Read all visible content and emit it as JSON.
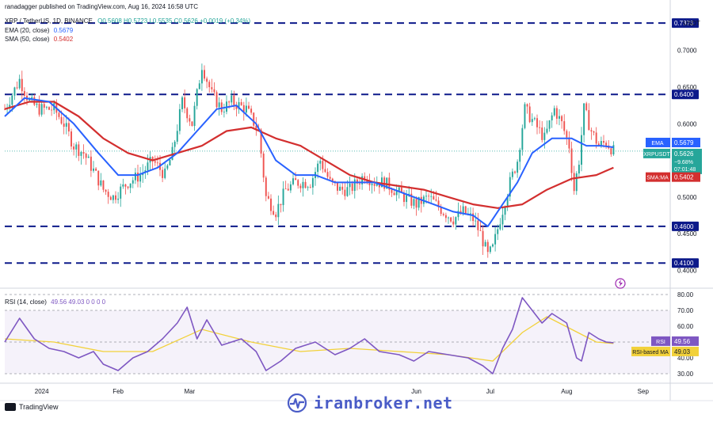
{
  "header": {
    "published": "ranadagger published on TradingView.com, Aug 16, 2024 16:58 UTC",
    "symbol_line": "XRP / TetherUS, 1D, BINANCE",
    "ohlc": "O0.5608 H0.5723 L0.5535 C0.5626 +0.0019 (+0.34%)",
    "ema_label": "EMA (20, close)",
    "ema_value": "0.5679",
    "sma_label": "SMA (50, close)",
    "sma_value": "0.5402",
    "rsi_label": "RSI (14, close)",
    "rsi_values": "49.56 49.03 0 0 0 0"
  },
  "price_axis": {
    "currency": "USDT",
    "ticks": [
      "0.7000",
      "0.6500",
      "0.6000",
      "0.5500",
      "0.5000",
      "0.4500",
      "0.4000"
    ]
  },
  "levels": [
    {
      "label": "0.7373",
      "value": 0.7373
    },
    {
      "label": "0.6400",
      "value": 0.64
    },
    {
      "label": "0.4600",
      "value": 0.46
    },
    {
      "label": "0.4100",
      "value": 0.41
    }
  ],
  "badges": {
    "ema": {
      "tag": "EMA",
      "value": "0.5679"
    },
    "last": {
      "tag": "XRPUSDT",
      "value": "0.5626",
      "change": "−9.68%",
      "time": "07:01:48"
    },
    "sma": {
      "tag": "SMA:MA",
      "value": "0.5402"
    }
  },
  "rsi_axis": {
    "ticks": [
      "80.00",
      "70.00",
      "60.00",
      "40.00",
      "30.00"
    ],
    "badge_rsi": {
      "tag": "RSI",
      "value": "49.56"
    },
    "badge_ma": {
      "tag": "RSI-based MA",
      "value": "49.03"
    }
  },
  "time_axis": {
    "labels": [
      {
        "text": "2024",
        "day": 15
      },
      {
        "text": "Feb",
        "day": 46
      },
      {
        "text": "Mar",
        "day": 75
      },
      {
        "text": "Jun",
        "day": 167
      },
      {
        "text": "Jul",
        "day": 197
      },
      {
        "text": "Aug",
        "day": 228
      },
      {
        "text": "Sep",
        "day": 259
      }
    ]
  },
  "footer": {
    "tv_label": "TradingView",
    "watermark": "iranbroker.net"
  },
  "colors": {
    "up": "#26a69a",
    "down": "#ef5350",
    "ema": "#2962ff",
    "sma": "#d32f2f",
    "rsi": "#7e57c2",
    "rsi_ma": "#f2d13a",
    "level": "#0d1a8a",
    "brand": "#4a5cc7"
  },
  "chart_data": [
    {
      "type": "candlestick",
      "title": "XRP / TetherUS, 1D, BINANCE",
      "ylabel": "USDT",
      "ylim": [
        0.38,
        0.745
      ],
      "x_start": "2023-12-01",
      "x_end": "2024-08-16",
      "close_path": [
        [
          0,
          0.62
        ],
        [
          6,
          0.66
        ],
        [
          10,
          0.63
        ],
        [
          14,
          0.62
        ],
        [
          20,
          0.62
        ],
        [
          24,
          0.6
        ],
        [
          28,
          0.57
        ],
        [
          32,
          0.56
        ],
        [
          37,
          0.53
        ],
        [
          40,
          0.51
        ],
        [
          44,
          0.5
        ],
        [
          50,
          0.52
        ],
        [
          55,
          0.53
        ],
        [
          60,
          0.55
        ],
        [
          65,
          0.53
        ],
        [
          68,
          0.56
        ],
        [
          72,
          0.63
        ],
        [
          76,
          0.6
        ],
        [
          80,
          0.68
        ],
        [
          84,
          0.64
        ],
        [
          88,
          0.62
        ],
        [
          92,
          0.63
        ],
        [
          98,
          0.62
        ],
        [
          103,
          0.59
        ],
        [
          106,
          0.5
        ],
        [
          110,
          0.48
        ],
        [
          114,
          0.51
        ],
        [
          118,
          0.52
        ],
        [
          124,
          0.52
        ],
        [
          128,
          0.55
        ],
        [
          132,
          0.52
        ],
        [
          136,
          0.51
        ],
        [
          140,
          0.51
        ],
        [
          146,
          0.53
        ],
        [
          150,
          0.52
        ],
        [
          154,
          0.52
        ],
        [
          158,
          0.51
        ],
        [
          162,
          0.5
        ],
        [
          167,
          0.49
        ],
        [
          172,
          0.5
        ],
        [
          178,
          0.48
        ],
        [
          182,
          0.47
        ],
        [
          186,
          0.48
        ],
        [
          190,
          0.47
        ],
        [
          193,
          0.45
        ],
        [
          196,
          0.42
        ],
        [
          198,
          0.43
        ],
        [
          201,
          0.47
        ],
        [
          205,
          0.52
        ],
        [
          208,
          0.55
        ],
        [
          211,
          0.62
        ],
        [
          215,
          0.6
        ],
        [
          219,
          0.58
        ],
        [
          223,
          0.62
        ],
        [
          226,
          0.6
        ],
        [
          229,
          0.57
        ],
        [
          231,
          0.51
        ],
        [
          233,
          0.55
        ],
        [
          235,
          0.62
        ],
        [
          238,
          0.59
        ],
        [
          241,
          0.57
        ],
        [
          244,
          0.575
        ],
        [
          247,
          0.5626
        ]
      ],
      "series": [
        {
          "name": "EMA (20, close)",
          "last": 0.5679,
          "values": [
            [
              0,
              0.61
            ],
            [
              8,
              0.635
            ],
            [
              18,
              0.63
            ],
            [
              28,
              0.6
            ],
            [
              38,
              0.56
            ],
            [
              46,
              0.53
            ],
            [
              54,
              0.53
            ],
            [
              62,
              0.54
            ],
            [
              70,
              0.56
            ],
            [
              78,
              0.59
            ],
            [
              86,
              0.62
            ],
            [
              94,
              0.625
            ],
            [
              102,
              0.6
            ],
            [
              110,
              0.55
            ],
            [
              118,
              0.53
            ],
            [
              126,
              0.53
            ],
            [
              134,
              0.52
            ],
            [
              142,
              0.52
            ],
            [
              150,
              0.52
            ],
            [
              158,
              0.51
            ],
            [
              166,
              0.5
            ],
            [
              174,
              0.49
            ],
            [
              182,
              0.48
            ],
            [
              190,
              0.475
            ],
            [
              196,
              0.46
            ],
            [
              202,
              0.49
            ],
            [
              208,
              0.52
            ],
            [
              214,
              0.56
            ],
            [
              222,
              0.58
            ],
            [
              230,
              0.58
            ],
            [
              236,
              0.57
            ],
            [
              242,
              0.57
            ],
            [
              247,
              0.5679
            ]
          ]
        },
        {
          "name": "SMA (50, close)",
          "last": 0.5402,
          "values": [
            [
              0,
              0.62
            ],
            [
              10,
              0.63
            ],
            [
              20,
              0.63
            ],
            [
              30,
              0.61
            ],
            [
              40,
              0.58
            ],
            [
              50,
              0.56
            ],
            [
              60,
              0.55
            ],
            [
              70,
              0.56
            ],
            [
              80,
              0.57
            ],
            [
              90,
              0.59
            ],
            [
              100,
              0.595
            ],
            [
              110,
              0.58
            ],
            [
              120,
              0.57
            ],
            [
              130,
              0.55
            ],
            [
              140,
              0.53
            ],
            [
              150,
              0.52
            ],
            [
              160,
              0.515
            ],
            [
              170,
              0.51
            ],
            [
              180,
              0.5
            ],
            [
              190,
              0.49
            ],
            [
              200,
              0.485
            ],
            [
              210,
              0.49
            ],
            [
              220,
              0.51
            ],
            [
              230,
              0.525
            ],
            [
              240,
              0.53
            ],
            [
              247,
              0.5402
            ]
          ]
        }
      ],
      "levels": [
        0.7373,
        0.64,
        0.46,
        0.41
      ]
    },
    {
      "type": "line",
      "title": "RSI (14, close)",
      "ylim": [
        25,
        82
      ],
      "series": [
        {
          "name": "RSI",
          "last": 49.56,
          "values": [
            [
              0,
              50
            ],
            [
              6,
              65
            ],
            [
              12,
              52
            ],
            [
              18,
              46
            ],
            [
              24,
              44
            ],
            [
              30,
              40
            ],
            [
              36,
              44
            ],
            [
              40,
              36
            ],
            [
              46,
              32
            ],
            [
              52,
              40
            ],
            [
              58,
              44
            ],
            [
              64,
              52
            ],
            [
              70,
              62
            ],
            [
              74,
              72
            ],
            [
              78,
              52
            ],
            [
              82,
              64
            ],
            [
              88,
              48
            ],
            [
              96,
              52
            ],
            [
              102,
              44
            ],
            [
              106,
              32
            ],
            [
              112,
              38
            ],
            [
              118,
              46
            ],
            [
              126,
              50
            ],
            [
              134,
              42
            ],
            [
              140,
              46
            ],
            [
              146,
              52
            ],
            [
              152,
              44
            ],
            [
              160,
              42
            ],
            [
              166,
              38
            ],
            [
              172,
              44
            ],
            [
              180,
              42
            ],
            [
              188,
              40
            ],
            [
              194,
              35
            ],
            [
              198,
              30
            ],
            [
              202,
              46
            ],
            [
              206,
              58
            ],
            [
              210,
              78
            ],
            [
              214,
              70
            ],
            [
              218,
              62
            ],
            [
              222,
              68
            ],
            [
              228,
              62
            ],
            [
              232,
              40
            ],
            [
              234,
              38
            ],
            [
              237,
              56
            ],
            [
              241,
              52
            ],
            [
              244,
              50
            ],
            [
              247,
              49.56
            ]
          ]
        },
        {
          "name": "RSI-based MA",
          "last": 49.03,
          "values": [
            [
              0,
              52
            ],
            [
              20,
              50
            ],
            [
              40,
              44
            ],
            [
              60,
              44
            ],
            [
              80,
              58
            ],
            [
              100,
              50
            ],
            [
              120,
              44
            ],
            [
              140,
              46
            ],
            [
              160,
              44
            ],
            [
              180,
              42
            ],
            [
              198,
              38
            ],
            [
              210,
              56
            ],
            [
              220,
              66
            ],
            [
              230,
              58
            ],
            [
              240,
              50
            ],
            [
              247,
              49.03
            ]
          ]
        }
      ]
    }
  ]
}
